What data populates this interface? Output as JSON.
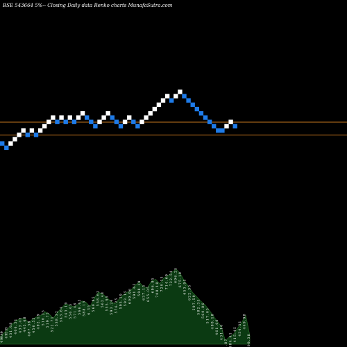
{
  "header": {
    "title": "BSE 543664  5%--  Closing Daily data  Renko  charts MunafaSutra.com"
  },
  "colors": {
    "background": "#000000",
    "up_brick": "#ffffff",
    "down_brick": "#1e7be8",
    "level_line": "#c8781e",
    "volume_fill": "#0b3a12",
    "volume_stroke": "#2f7a2f",
    "label": "#ffffff"
  },
  "chart_data": {
    "type": "renko",
    "brick_percent": 5,
    "bricks": [
      {
        "d": "down",
        "level": 0
      },
      {
        "d": "down",
        "level": -1
      },
      {
        "d": "up",
        "level": 0
      },
      {
        "d": "up",
        "level": 1
      },
      {
        "d": "up",
        "level": 2
      },
      {
        "d": "up",
        "level": 3
      },
      {
        "d": "down",
        "level": 2
      },
      {
        "d": "up",
        "level": 3
      },
      {
        "d": "down",
        "level": 2
      },
      {
        "d": "up",
        "level": 3
      },
      {
        "d": "up",
        "level": 4
      },
      {
        "d": "up",
        "level": 5
      },
      {
        "d": "up",
        "level": 6
      },
      {
        "d": "down",
        "level": 5
      },
      {
        "d": "up",
        "level": 6
      },
      {
        "d": "down",
        "level": 5
      },
      {
        "d": "up",
        "level": 6
      },
      {
        "d": "down",
        "level": 5
      },
      {
        "d": "up",
        "level": 6
      },
      {
        "d": "up",
        "level": 7
      },
      {
        "d": "down",
        "level": 6
      },
      {
        "d": "down",
        "level": 5
      },
      {
        "d": "down",
        "level": 4
      },
      {
        "d": "up",
        "level": 5
      },
      {
        "d": "up",
        "level": 6
      },
      {
        "d": "up",
        "level": 7
      },
      {
        "d": "down",
        "level": 6
      },
      {
        "d": "down",
        "level": 5
      },
      {
        "d": "down",
        "level": 4
      },
      {
        "d": "up",
        "level": 5
      },
      {
        "d": "up",
        "level": 6
      },
      {
        "d": "down",
        "level": 5
      },
      {
        "d": "down",
        "level": 4
      },
      {
        "d": "up",
        "level": 5
      },
      {
        "d": "up",
        "level": 6
      },
      {
        "d": "up",
        "level": 7
      },
      {
        "d": "up",
        "level": 8
      },
      {
        "d": "up",
        "level": 9
      },
      {
        "d": "up",
        "level": 10
      },
      {
        "d": "up",
        "level": 11
      },
      {
        "d": "down",
        "level": 10
      },
      {
        "d": "up",
        "level": 11
      },
      {
        "d": "up",
        "level": 12
      },
      {
        "d": "down",
        "level": 11
      },
      {
        "d": "down",
        "level": 10
      },
      {
        "d": "down",
        "level": 9
      },
      {
        "d": "down",
        "level": 8
      },
      {
        "d": "down",
        "level": 7
      },
      {
        "d": "down",
        "level": 6
      },
      {
        "d": "down",
        "level": 5
      },
      {
        "d": "down",
        "level": 4
      },
      {
        "d": "down",
        "level": 3
      },
      {
        "d": "down",
        "level": 3
      },
      {
        "d": "up",
        "level": 4
      },
      {
        "d": "up",
        "level": 5
      },
      {
        "d": "down",
        "level": 4
      }
    ],
    "level_lines": [
      5,
      2
    ],
    "volume": [
      10,
      16,
      22,
      28,
      33,
      35,
      36,
      30,
      35,
      38,
      40,
      45,
      42,
      36,
      44,
      50,
      56,
      54,
      52,
      55,
      60,
      58,
      52,
      64,
      72,
      70,
      65,
      60,
      56,
      62,
      68,
      72,
      75,
      82,
      86,
      80,
      78,
      88,
      90,
      84,
      92,
      95,
      100,
      104,
      98,
      88,
      80,
      72,
      66,
      60,
      55,
      48,
      40,
      32,
      25,
      5,
      10,
      14,
      22,
      30,
      40,
      12
    ],
    "volume_labels": [
      "4 90.49",
      "4 95 35",
      "4 3 1 . 6 8",
      "4 0 6 . 5 1",
      "4 3 3 . 4 5",
      "4 4 5 . 6 8",
      "4 8 7 . 3 8",
      "4 5 6 . 5 5",
      "4 9 2 . 1 9",
      "5 1 0 . 2 5",
      "5 1 9 . 7 5",
      "5 2 2 . 7 1",
      "5 3 8 . 3 2",
      "5 4 3 . 6 4",
      "5 4 3 . 1 9",
      "5 5 6 . 0 5",
      "5 7 1 . 4 8",
      "5 6 6 . 6 5",
      "5 8 8 . 1 5",
      "6 . 3 5",
      "5 6 0 . 8 5",
      "5 5 8 . 6 1",
      "5 6 2 . 4 8",
      "5 5 5 . 9 5",
      "5 9 3 . 2 6",
      "5 7 6 . 2 5",
      "5 9 5 . 1 9",
      "5 9 3 . 1 5",
      "6 0 9 . 9 6",
      "5 9 1 . 6 5",
      "5 9 8 . 1 9",
      "6 3 7 . 1 5",
      "6 5 5 . 0 5",
      "6 9 6 . 9 5",
      "7 0 8 . 1 8",
      "7 2 0 . 1 5",
      "7 1 4 . 6 9",
      "7 2 2 . 5 4",
      "6 9 6 . 2 5",
      "6 7 5 . 1 9",
      "6 5 3 . 9 5",
      "6 2 2 . 3 5",
      "5 9 7 . 5 9",
      "5 8 2 . 3 5",
      "5 6 0 . 8 6",
      "5 1 7 . 0 5",
      "4 9 8 . 1 8",
      "4 6 1 . 6 6",
      "4 3 1 . 1 6",
      "4 0 7 . 8 7",
      "3 8 4 . 6 1",
      "4 1 5 . 4 5",
      "4 3 4 . 3 1",
      "4 4 9 . 9 8",
      "4 0 9 . 3 8"
    ]
  }
}
